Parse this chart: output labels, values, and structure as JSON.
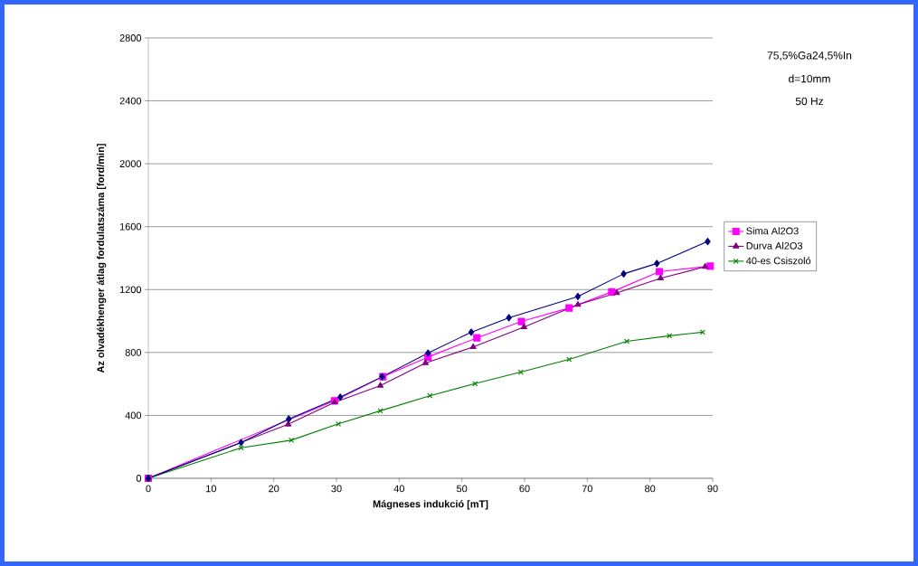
{
  "chart_data": {
    "type": "line",
    "xlabel": "Mágneses indukció  [mT]",
    "ylabel": "Az olvadékhenger átlag fordulatszáma  [ford/min]",
    "annotations": [
      "75,5%Ga24,5%In",
      "d=10mm",
      "50 Hz"
    ],
    "xlim": [
      0,
      90
    ],
    "ylim": [
      0,
      2800
    ],
    "xticks": [
      0,
      10,
      20,
      30,
      40,
      50,
      60,
      70,
      80,
      90
    ],
    "yticks": [
      0,
      400,
      800,
      1200,
      1600,
      2000,
      2400,
      2800
    ],
    "grid": "y",
    "legend": "right",
    "line_style": "solid",
    "series": [
      {
        "color": "#000080",
        "marker": "diamond",
        "x": [
          0,
          14.8,
          22.4,
          30.6,
          37.3,
          44.6,
          51.5,
          57.5,
          68.5,
          75.8,
          81.1,
          89.2
        ],
        "values": [
          0,
          227,
          377,
          516,
          646,
          796,
          929,
          1021,
          1156,
          1300,
          1366,
          1506
        ]
      },
      {
        "name": "Sima Al2O3",
        "color": "#ff00ff",
        "marker": "square",
        "x": [
          0,
          29.7,
          37.4,
          44.6,
          52.4,
          59.5,
          67.1,
          73.9,
          81.5,
          89.6
        ],
        "values": [
          0,
          493,
          646,
          771,
          893,
          997,
          1083,
          1185,
          1314,
          1349
        ]
      },
      {
        "name": "Durva Al2O3",
        "color": "#800080",
        "marker": "triangle",
        "x": [
          0,
          22.3,
          29.7,
          37.0,
          44.2,
          51.8,
          59.9,
          68.5,
          74.7,
          81.7,
          88.8
        ],
        "values": [
          0,
          343,
          483,
          589,
          733,
          835,
          962,
          1104,
          1179,
          1272,
          1345
        ]
      },
      {
        "name": "40-es Csiszoló",
        "color": "#008000",
        "marker": "cross",
        "x": [
          0,
          14.8,
          22.8,
          30.3,
          37.0,
          44.9,
          52.1,
          59.4,
          67.1,
          76.3,
          83.1,
          88.4
        ],
        "values": [
          0,
          194,
          242,
          346,
          429,
          525,
          602,
          675,
          756,
          871,
          906,
          929
        ]
      }
    ]
  }
}
